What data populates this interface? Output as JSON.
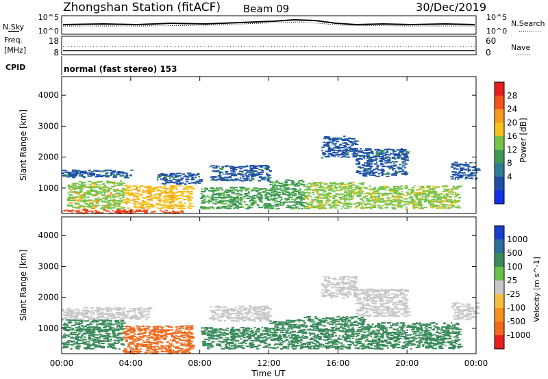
{
  "header": {
    "station": "Zhongshan Station (fitACF)",
    "beam": "Beam 09",
    "date": "30/Dec/2019"
  },
  "noise_panel": {
    "left_label": "N.Sky",
    "right_label": "N.Search",
    "left_ticks": [
      "10^5",
      "10^0"
    ],
    "right_ticks": [
      "10^5",
      "10^0"
    ]
  },
  "freq_panel": {
    "left_label_line1": "Freq.",
    "left_label_line2": "[MHz]",
    "right_label": "Nave",
    "left_ticks": [
      "18",
      "8"
    ],
    "right_ticks": [
      "60",
      "0"
    ]
  },
  "cpid": {
    "label": "CPID",
    "text": "normal (fast stereo) 153"
  },
  "chart_data": [
    {
      "type": "heatmap",
      "title": "",
      "xlabel": "Time UT",
      "ylabel": "Slant Range [km]",
      "xlim": [
        0,
        24
      ],
      "ylim": [
        180,
        4600
      ],
      "x_ticks": [
        "00:00",
        "04:00",
        "08:00",
        "12:00",
        "16:00",
        "20:00",
        "00:00"
      ],
      "y_ticks": [
        1000,
        2000,
        3000,
        4000
      ],
      "colorbar": {
        "label": "Power [dB]",
        "ticks": [
          "28",
          "24",
          "20",
          "16",
          "12",
          "8",
          "4"
        ],
        "colors": [
          "#e8201c",
          "#f2541c",
          "#f79a1c",
          "#f5c11c",
          "#76c34a",
          "#3d9a54",
          "#2e7d96",
          "#1f4ea8",
          "#1430e6"
        ]
      },
      "regions": [
        {
          "t0": 0.0,
          "t1": 7.2,
          "r0": 200,
          "r1": 320,
          "level": 27
        },
        {
          "t0": 0.3,
          "t1": 3.5,
          "r0": 350,
          "r1": 1250,
          "level": 17
        },
        {
          "t0": 3.5,
          "t1": 7.5,
          "r0": 350,
          "r1": 1100,
          "level": 19
        },
        {
          "t0": 0.0,
          "t1": 4.0,
          "r0": 1350,
          "r1": 1600,
          "level": 6
        },
        {
          "t0": 5.5,
          "t1": 8.0,
          "r0": 1150,
          "r1": 1500,
          "level": 7
        },
        {
          "t0": 8.0,
          "t1": 12.0,
          "r0": 350,
          "r1": 1050,
          "level": 12
        },
        {
          "t0": 8.5,
          "t1": 12.0,
          "r0": 1250,
          "r1": 1750,
          "level": 7
        },
        {
          "t0": 12.0,
          "t1": 14.0,
          "r0": 350,
          "r1": 1300,
          "level": 11
        },
        {
          "t0": 14.0,
          "t1": 17.5,
          "r0": 350,
          "r1": 1200,
          "level": 15
        },
        {
          "t0": 15.0,
          "t1": 17.0,
          "r0": 2000,
          "r1": 2700,
          "level": 6
        },
        {
          "t0": 17.0,
          "t1": 20.0,
          "r0": 1400,
          "r1": 2300,
          "level": 7
        },
        {
          "t0": 17.5,
          "t1": 23.0,
          "r0": 350,
          "r1": 1100,
          "level": 16
        },
        {
          "t0": 22.5,
          "t1": 24.0,
          "r0": 1300,
          "r1": 1850,
          "level": 6
        }
      ]
    },
    {
      "type": "heatmap",
      "title": "",
      "xlabel": "Time UT",
      "ylabel": "Slant Range [km]",
      "xlim": [
        0,
        24
      ],
      "ylim": [
        180,
        4600
      ],
      "x_ticks": [
        "00:00",
        "04:00",
        "08:00",
        "12:00",
        "16:00",
        "20:00",
        "00:00"
      ],
      "y_ticks": [
        1000,
        2000,
        3000,
        4000
      ],
      "colorbar": {
        "label": "Velocity [m s^-1]",
        "ticks": [
          "1000",
          "500",
          "100",
          "25",
          "-25",
          "-100",
          "-500",
          "-1000"
        ],
        "colors": [
          "#1a3fcc",
          "#2a6e9e",
          "#3a8a5a",
          "#66c244",
          "#c8c8c8",
          "#f5c040",
          "#f5921e",
          "#f06a1c",
          "#e8201c"
        ]
      },
      "regions": [
        {
          "t0": 0.0,
          "t1": 3.5,
          "r0": 350,
          "r1": 1300,
          "level": 250
        },
        {
          "t0": 3.5,
          "t1": 7.5,
          "r0": 200,
          "r1": 1100,
          "level": -350
        },
        {
          "t0": 0.0,
          "t1": 5.0,
          "r0": 1300,
          "r1": 1700,
          "level": 0
        },
        {
          "t0": 8.0,
          "t1": 12.0,
          "r0": 350,
          "r1": 1050,
          "level": 250
        },
        {
          "t0": 8.5,
          "t1": 12.0,
          "r0": 1250,
          "r1": 1750,
          "level": 0
        },
        {
          "t0": 12.0,
          "t1": 14.0,
          "r0": 350,
          "r1": 1300,
          "level": 250
        },
        {
          "t0": 14.0,
          "t1": 17.5,
          "r0": 350,
          "r1": 1400,
          "level": 250
        },
        {
          "t0": 15.0,
          "t1": 17.0,
          "r0": 2000,
          "r1": 2700,
          "level": 0
        },
        {
          "t0": 17.0,
          "t1": 20.0,
          "r0": 1400,
          "r1": 2300,
          "level": 0
        },
        {
          "t0": 17.5,
          "t1": 23.0,
          "r0": 350,
          "r1": 1200,
          "level": 250
        },
        {
          "t0": 22.5,
          "t1": 24.0,
          "r0": 1300,
          "r1": 1850,
          "level": 0
        }
      ]
    }
  ]
}
